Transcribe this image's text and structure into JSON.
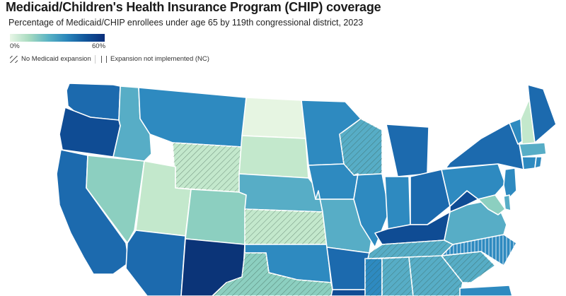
{
  "title": "Medicaid/Children's Health Insurance Program (CHIP) coverage",
  "subtitle": "Percentage of Medicaid/CHIP enrollees under age 65 by 119th congressional district, 2023",
  "legend": {
    "scale_min": "0%",
    "scale_max": "60%",
    "no_expansion": "No Medicaid expansion",
    "not_implemented": "Expansion not implemented (NC)"
  },
  "colors": {
    "c0": "#e6f5e2",
    "c1": "#c3e8cc",
    "c2": "#8ccfc0",
    "c3": "#57adc6",
    "c4": "#2e8ac0",
    "c5": "#1c6aae",
    "c6": "#0f4c94",
    "c7": "#0b3478"
  },
  "states": [
    {
      "id": "WA",
      "shade": "c5"
    },
    {
      "id": "OR",
      "shade": "c6"
    },
    {
      "id": "CA",
      "shade": "c5"
    },
    {
      "id": "NV",
      "shade": "c2"
    },
    {
      "id": "ID",
      "shade": "c3"
    },
    {
      "id": "MT",
      "shade": "c4"
    },
    {
      "id": "WY",
      "shade": "c1",
      "pattern": "no-expansion"
    },
    {
      "id": "UT",
      "shade": "c1"
    },
    {
      "id": "AZ",
      "shade": "c5"
    },
    {
      "id": "CO",
      "shade": "c2"
    },
    {
      "id": "NM",
      "shade": "c7"
    },
    {
      "id": "ND",
      "shade": "c0"
    },
    {
      "id": "SD",
      "shade": "c1"
    },
    {
      "id": "NE",
      "shade": "c3"
    },
    {
      "id": "KS",
      "shade": "c1",
      "pattern": "no-expansion"
    },
    {
      "id": "OK",
      "shade": "c4"
    },
    {
      "id": "TX",
      "shade": "c2",
      "pattern": "no-expansion"
    },
    {
      "id": "MN",
      "shade": "c4"
    },
    {
      "id": "IA",
      "shade": "c4"
    },
    {
      "id": "MO",
      "shade": "c3"
    },
    {
      "id": "AR",
      "shade": "c5"
    },
    {
      "id": "LA",
      "shade": "c6"
    },
    {
      "id": "WI",
      "shade": "c3",
      "pattern": "no-expansion"
    },
    {
      "id": "IL",
      "shade": "c4"
    },
    {
      "id": "MI",
      "shade": "c5"
    },
    {
      "id": "IN",
      "shade": "c4"
    },
    {
      "id": "OH",
      "shade": "c5"
    },
    {
      "id": "KY",
      "shade": "c6"
    },
    {
      "id": "TN",
      "shade": "c3",
      "pattern": "no-expansion"
    },
    {
      "id": "MS",
      "shade": "c4",
      "pattern": "no-expansion"
    },
    {
      "id": "AL",
      "shade": "c3",
      "pattern": "no-expansion"
    },
    {
      "id": "GA",
      "shade": "c3",
      "pattern": "no-expansion"
    },
    {
      "id": "FL",
      "shade": "c4"
    },
    {
      "id": "SC",
      "shade": "c3",
      "pattern": "no-expansion"
    },
    {
      "id": "NC",
      "shade": "c4",
      "pattern": "not-implemented"
    },
    {
      "id": "VA",
      "shade": "c3"
    },
    {
      "id": "WV",
      "shade": "c6"
    },
    {
      "id": "PA",
      "shade": "c4"
    },
    {
      "id": "NY",
      "shade": "c5"
    },
    {
      "id": "VT",
      "shade": "c4"
    },
    {
      "id": "NH",
      "shade": "c1"
    },
    {
      "id": "ME",
      "shade": "c5"
    },
    {
      "id": "MA",
      "shade": "c3"
    },
    {
      "id": "CT",
      "shade": "c4"
    },
    {
      "id": "RI",
      "shade": "c4"
    },
    {
      "id": "NJ",
      "shade": "c4"
    },
    {
      "id": "DE",
      "shade": "c3"
    },
    {
      "id": "MD",
      "shade": "c2"
    }
  ]
}
